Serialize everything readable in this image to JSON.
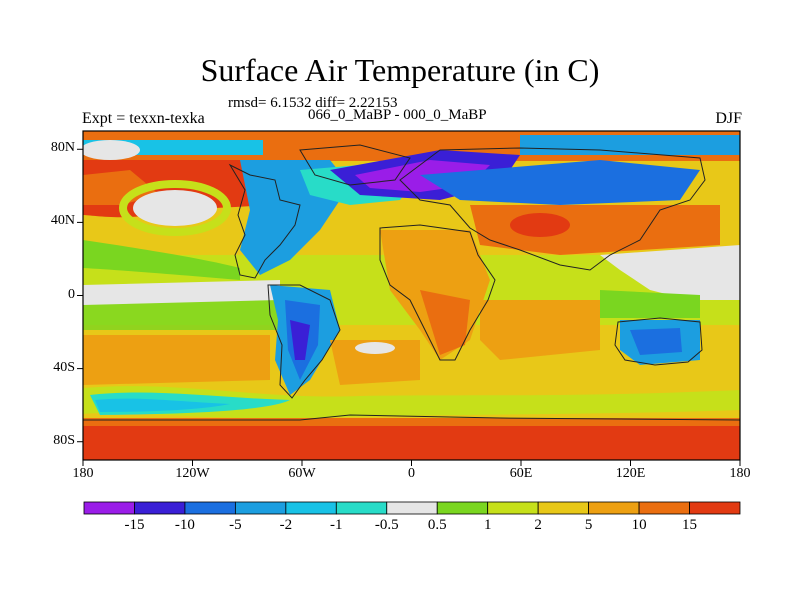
{
  "title": "Surface Air Temperature (in C)",
  "stats": "rmsd= 6.1532 diff= 2.22153",
  "experiment": "Expt = texxn-texka",
  "comparison": "066_0_MaBP - 000_0_MaBP",
  "season": "DJF",
  "lat_axis": {
    "ticks": [
      {
        "label": "80N",
        "value": 80
      },
      {
        "label": "40N",
        "value": 40
      },
      {
        "label": "0",
        "value": 0
      },
      {
        "label": "40S",
        "value": -40
      },
      {
        "label": "80S",
        "value": -80
      }
    ]
  },
  "lon_axis": {
    "ticks": [
      {
        "label": "180",
        "value": -180
      },
      {
        "label": "120W",
        "value": -120
      },
      {
        "label": "60W",
        "value": -60
      },
      {
        "label": "0",
        "value": 0
      },
      {
        "label": "60E",
        "value": 60
      },
      {
        "label": "120E",
        "value": 120
      },
      {
        "label": "180",
        "value": 180
      }
    ]
  },
  "colorbar": {
    "colors": [
      "#9a1de8",
      "#3a1fd6",
      "#1b6fe0",
      "#1c9ee0",
      "#18c2e6",
      "#28dcc8",
      "#e6e6e6",
      "#7ad620",
      "#c6e01a",
      "#e8c818",
      "#eda012",
      "#ea6e10",
      "#e23a12"
    ],
    "labels": [
      "-15",
      "-10",
      "-5",
      "-2",
      "-1",
      "-0.5",
      "0.5",
      "1",
      "2",
      "5",
      "10",
      "15"
    ]
  }
}
